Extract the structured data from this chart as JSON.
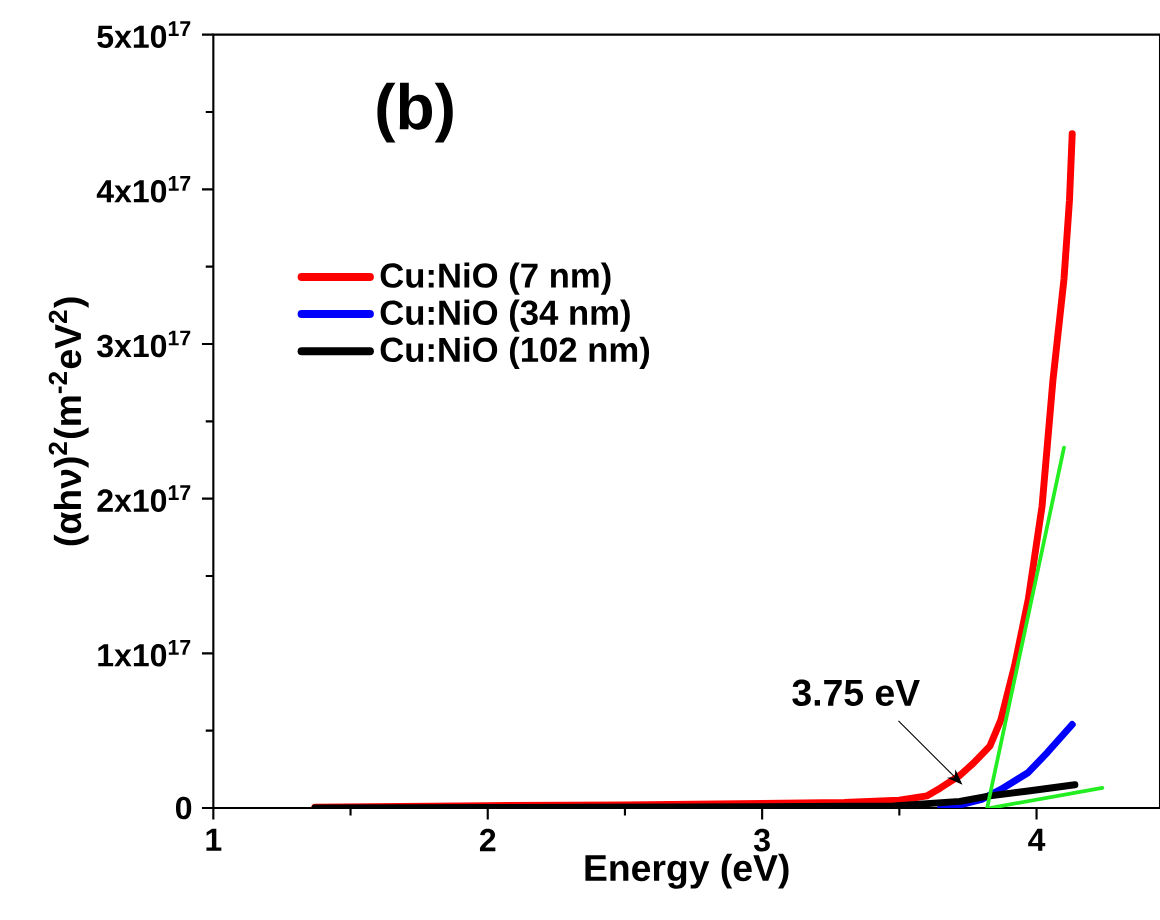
{
  "chart_data": {
    "type": "line",
    "xlabel": "Energy (eV)",
    "ylabel": "(αhν)$^{2}$(m$^{-2}$eV$^{2}$)",
    "xlim": [
      1,
      4.45
    ],
    "ylim": [
      0,
      5e+17
    ],
    "xticks": [
      1,
      2,
      3,
      4
    ],
    "yticks": [
      0,
      {
        "value": 1e+17,
        "label": "1x10$^{17}$"
      },
      {
        "value": 2e+17,
        "label": "2x10$^{17}$"
      },
      {
        "value": 3e+17,
        "label": "3x10$^{17}$"
      },
      {
        "value": 4e+17,
        "label": "4x10$^{17}$"
      },
      {
        "value": 5e+17,
        "label": "5x10$^{17}$"
      }
    ],
    "legend": "left",
    "marker": "none",
    "line_style": "solid",
    "grid": false,
    "annotations": [
      "(b)",
      {
        "text": "3.75 eV",
        "x": 3.73,
        "y": 1.5e+16
      }
    ],
    "series": [
      {
        "name": "Cu:NiO (7 nm)",
        "color": "#ff0000",
        "x": [
          1.37,
          2.0,
          2.5,
          3.0,
          3.3,
          3.5,
          3.6,
          3.65,
          3.72,
          3.77,
          3.83,
          3.87,
          3.92,
          3.97,
          4.02,
          4.06,
          4.1,
          4.12,
          4.13
        ],
        "values": [
          500000000000000.0,
          1500000000000000.0,
          2000000000000000.0,
          3000000000000000.0,
          3500000000000000.0,
          5000000000000000.0,
          7800000000000000.0,
          1.3e+16,
          2.1e+16,
          2.9e+16,
          4e+16,
          5.7e+16,
          9.2e+16,
          1.35e+17,
          1.95e+17,
          2.77e+17,
          3.42e+17,
          3.93e+17,
          4.36e+17
        ]
      },
      {
        "name": "Cu:NiO (34 nm)",
        "color": "#0000ff",
        "x": [
          3.65,
          3.7,
          3.8,
          3.87,
          3.97,
          4.04,
          4.13
        ],
        "values": [
          0,
          1000000000000000.0,
          5600000000000000.0,
          1.2e+16,
          2.3e+16,
          3.6e+16,
          5.4e+16
        ]
      },
      {
        "name": "Cu:NiO (102 nm)",
        "color": "#000000",
        "x": [
          1.37,
          2.0,
          3.0,
          3.48,
          3.72,
          3.83,
          3.97,
          4.14
        ],
        "values": [
          0,
          300000000000000.0,
          800000000000000.0,
          1300000000000000.0,
          4300000000000000.0,
          7800000000000000.0,
          1.1e+16,
          1.5e+16
        ]
      },
      {
        "color": "#22ee22",
        "x": [
          3.82,
          4.1
        ],
        "values": [
          0,
          2.33e+17
        ]
      },
      {
        "color": "#22ee22",
        "x": [
          3.83,
          4.24
        ],
        "values": [
          0,
          1.3e+16
        ]
      }
    ]
  }
}
